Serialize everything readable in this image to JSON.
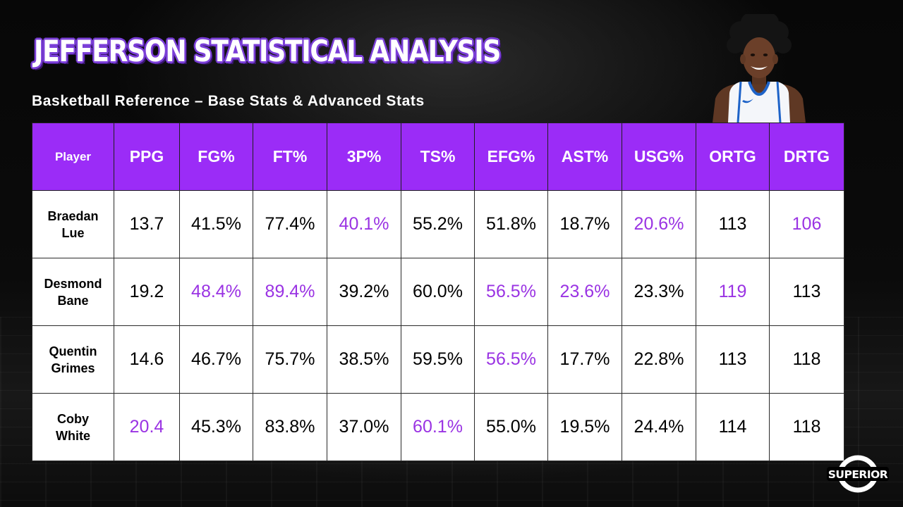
{
  "title": "JEFFERSON STATISTICAL ANALYSIS",
  "subtitle": "Basketball Reference – Base Stats & Advanced Stats",
  "logo_text": "SUPERIOR",
  "colors": {
    "header_bg": "#9b2cf7",
    "highlight": "#9a33e3",
    "title_outline": "#7b3fd8",
    "cell_bg": "#ffffff"
  },
  "chart_data": {
    "type": "table",
    "columns": [
      "Player",
      "PPG",
      "FG%",
      "FT%",
      "3P%",
      "TS%",
      "EFG%",
      "AST%",
      "USG%",
      "ORTG",
      "DRTG"
    ],
    "rows": [
      {
        "player": [
          "Braedan",
          "Lue"
        ],
        "values": [
          "13.7",
          "41.5%",
          "77.4%",
          "40.1%",
          "55.2%",
          "51.8%",
          "18.7%",
          "20.6%",
          "113",
          "106"
        ],
        "highlight": [
          false,
          false,
          false,
          true,
          false,
          false,
          false,
          true,
          false,
          true
        ]
      },
      {
        "player": [
          "Desmond",
          "Bane"
        ],
        "values": [
          "19.2",
          "48.4%",
          "89.4%",
          "39.2%",
          "60.0%",
          "56.5%",
          "23.6%",
          "23.3%",
          "119",
          "113"
        ],
        "highlight": [
          false,
          true,
          true,
          false,
          false,
          true,
          true,
          false,
          true,
          false
        ]
      },
      {
        "player": [
          "Quentin",
          "Grimes"
        ],
        "values": [
          "14.6",
          "46.7%",
          "75.7%",
          "38.5%",
          "59.5%",
          "56.5%",
          "17.7%",
          "22.8%",
          "113",
          "118"
        ],
        "highlight": [
          false,
          false,
          false,
          false,
          false,
          true,
          false,
          false,
          false,
          false
        ]
      },
      {
        "player": [
          "Coby",
          "White"
        ],
        "values": [
          "20.4",
          "45.3%",
          "83.8%",
          "37.0%",
          "60.1%",
          "55.0%",
          "19.5%",
          "24.4%",
          "114",
          "118"
        ],
        "highlight": [
          true,
          false,
          false,
          false,
          true,
          false,
          false,
          false,
          false,
          false
        ]
      }
    ]
  }
}
